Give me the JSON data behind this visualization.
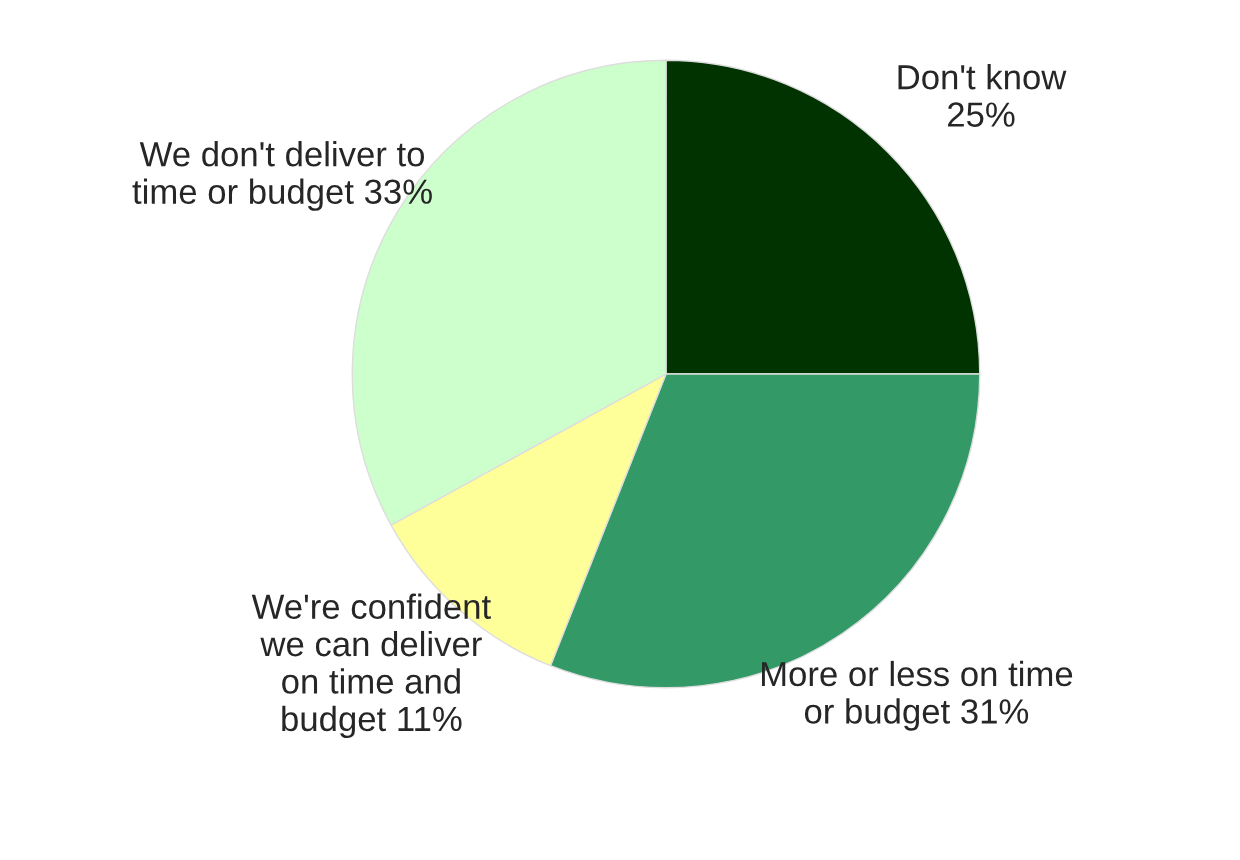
{
  "chart_data": {
    "type": "pie",
    "categories": [
      "Don't know",
      "More or less on time\nor budget",
      "We're confident\nwe can deliver\non time and\nbudget",
      "We don't deliver to\ntime or budget"
    ],
    "values": [
      25,
      31,
      11,
      33
    ],
    "value_labels": [
      "25%",
      "31%",
      "11%",
      "33%"
    ],
    "colors": [
      "#003300",
      "#339966",
      "#ffff99",
      "#ccffcc"
    ],
    "legend": false
  }
}
